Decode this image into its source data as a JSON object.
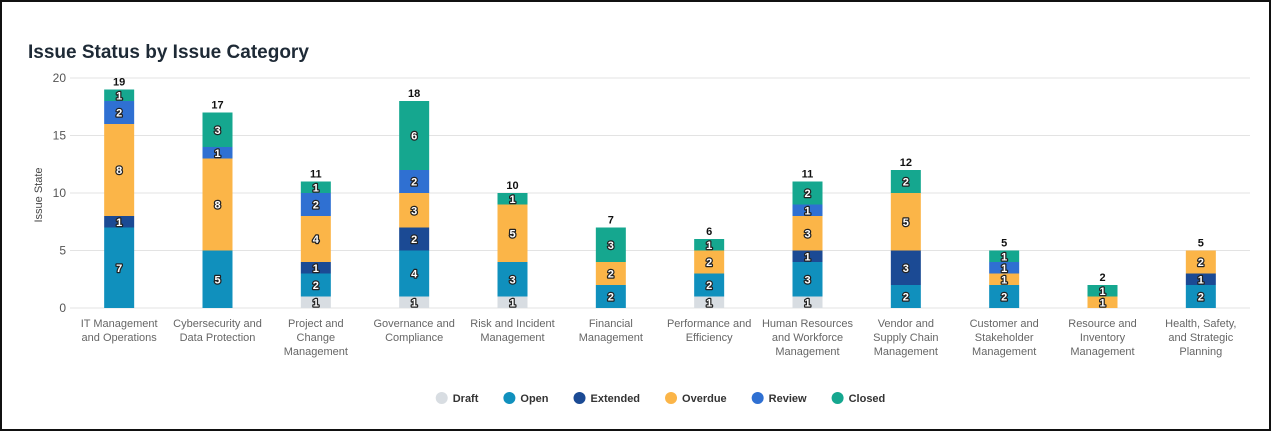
{
  "chart_data": {
    "type": "stacked_bar",
    "title": "Issue Status by Issue Category",
    "y_label": "Issue State",
    "categories": [
      "IT Management and Operations",
      "Cybersecurity and Data Protection",
      "Project and Change Management",
      "Governance and Compliance",
      "Risk and Incident Management",
      "Financial Management",
      "Performance and Efficiency",
      "Human Resources and Workforce Management",
      "Vendor and Supply Chain Management",
      "Customer and Stakeholder Management",
      "Resource and Inventory Management",
      "Health, Safety, and Strategic Planning"
    ],
    "series": [
      {
        "name": "Draft",
        "color": "#d8dde2",
        "values": [
          null,
          null,
          1,
          1,
          1,
          null,
          1,
          1,
          null,
          null,
          null,
          null
        ]
      },
      {
        "name": "Open",
        "color": "#1090bd",
        "values": [
          7,
          5,
          2,
          4,
          3,
          2,
          2,
          3,
          2,
          2,
          null,
          2
        ]
      },
      {
        "name": "Extended",
        "color": "#1b4a94",
        "values": [
          1,
          null,
          1,
          2,
          null,
          null,
          null,
          1,
          3,
          null,
          null,
          1
        ]
      },
      {
        "name": "Overdue",
        "color": "#fbb548",
        "values": [
          8,
          8,
          4,
          3,
          5,
          2,
          2,
          3,
          5,
          1,
          1,
          2
        ]
      },
      {
        "name": "Review",
        "color": "#2f70d2",
        "values": [
          2,
          1,
          2,
          2,
          null,
          null,
          null,
          1,
          null,
          1,
          null,
          null
        ]
      },
      {
        "name": "Closed",
        "color": "#15a78f",
        "values": [
          1,
          3,
          1,
          6,
          1,
          3,
          1,
          2,
          2,
          1,
          1,
          null
        ]
      }
    ],
    "totals": [
      19,
      17,
      11,
      18,
      10,
      7,
      6,
      11,
      12,
      5,
      2,
      5
    ],
    "ylim": [
      0,
      20
    ],
    "yticks": [
      0,
      5,
      10,
      15,
      20
    ],
    "grid": true,
    "legend": "bottom"
  }
}
